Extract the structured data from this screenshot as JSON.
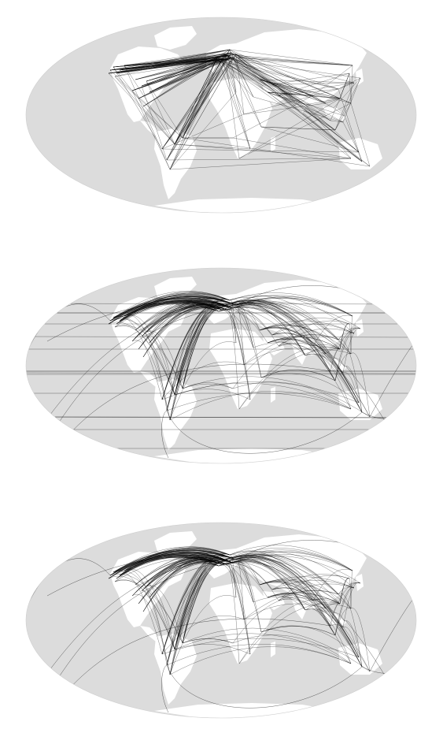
{
  "colors": {
    "background": "#ffffff",
    "ocean": "#dcdcdc",
    "land": "#ffffff",
    "route": "#000000"
  },
  "panels": [
    {
      "id": "panel-1",
      "route_style": "straight"
    },
    {
      "id": "panel-2",
      "route_style": "great-circle-wrapped"
    },
    {
      "id": "panel-3",
      "route_style": "great-circle"
    }
  ]
}
